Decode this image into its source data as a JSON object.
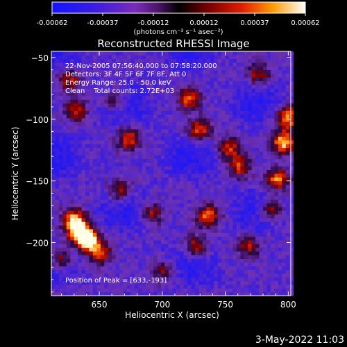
{
  "chart_data": {
    "type": "heatmap",
    "title": "Reconstructed RHESSI Image",
    "xlabel": "Heliocentric X (arcsec)",
    "ylabel": "Heliocentric Y (arcsec)",
    "xlim": [
      612,
      802
    ],
    "ylim": [
      -243,
      -45
    ],
    "x_ticks": [
      650,
      700,
      750,
      800
    ],
    "y_ticks": [
      -50,
      -100,
      -150,
      -200
    ],
    "colorbar": {
      "ticks": [
        "-0.00062",
        "-0.00037",
        "-0.00012",
        "0.00012",
        "0.00037",
        "0.00062"
      ],
      "units_label": "(photons cm⁻² s⁻¹ asec⁻²)",
      "range": [
        -0.00062,
        0.00062
      ]
    },
    "annotations": [
      "22-Nov-2005 07:56:40.000 to 07:58:20.000",
      "Detectors: 3F 4F 5F 6F 7F 8F, Att 0",
      "Energy Range: 25.0 - 50.0 keV",
      "Clean    Total counts: 2.72E+03"
    ],
    "peak_label": "Position of Peak = [633,-193]",
    "peak": {
      "x": 633,
      "y": -193
    },
    "hot_regions": [
      {
        "x": 633,
        "y": -193,
        "level": 1.0
      },
      {
        "x": 640,
        "y": -200,
        "level": 0.9
      },
      {
        "x": 628,
        "y": -182,
        "level": 0.75
      },
      {
        "x": 650,
        "y": -210,
        "level": 0.6
      },
      {
        "x": 618,
        "y": -215,
        "level": 0.6
      },
      {
        "x": 795,
        "y": -120,
        "level": 0.9
      },
      {
        "x": 798,
        "y": -100,
        "level": 0.8
      },
      {
        "x": 790,
        "y": -150,
        "level": 0.75
      },
      {
        "x": 785,
        "y": -175,
        "level": 0.6
      },
      {
        "x": 720,
        "y": -85,
        "level": 0.7
      },
      {
        "x": 728,
        "y": -110,
        "level": 0.65
      },
      {
        "x": 735,
        "y": -180,
        "level": 0.75
      },
      {
        "x": 725,
        "y": -205,
        "level": 0.6
      },
      {
        "x": 672,
        "y": -118,
        "level": 0.65
      },
      {
        "x": 665,
        "y": -160,
        "level": 0.5
      },
      {
        "x": 660,
        "y": -85,
        "level": 0.5
      },
      {
        "x": 630,
        "y": -95,
        "level": 0.55
      },
      {
        "x": 625,
        "y": -70,
        "level": 0.5
      },
      {
        "x": 760,
        "y": -140,
        "level": 0.6
      },
      {
        "x": 752,
        "y": -125,
        "level": 0.55
      },
      {
        "x": 767,
        "y": -205,
        "level": 0.5
      },
      {
        "x": 690,
        "y": -178,
        "level": 0.5
      },
      {
        "x": 700,
        "y": -225,
        "level": 0.45
      },
      {
        "x": 775,
        "y": -65,
        "level": 0.5
      }
    ]
  },
  "footer": {
    "timestamp": "3-May-2022 11:03"
  }
}
